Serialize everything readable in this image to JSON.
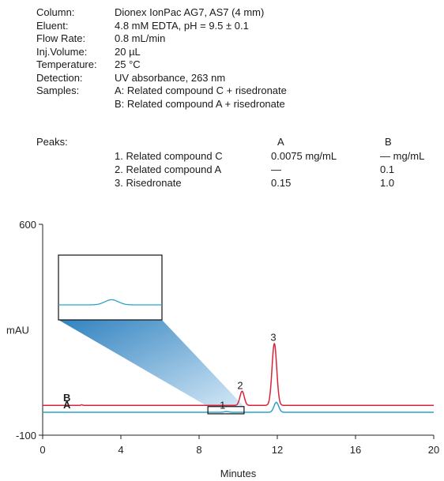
{
  "info": [
    {
      "label": "Column:",
      "value": "Dionex IonPac AG7, AS7 (4 mm)"
    },
    {
      "label": "Eluent:",
      "value": "4.8 mM EDTA, pH = 9.5 ± 0.1"
    },
    {
      "label": "Flow Rate:",
      "value": "0.8 mL/min"
    },
    {
      "label": "Inj.Volume:",
      "value": "20 µL"
    },
    {
      "label": "Temperature:",
      "value": "25 °C"
    },
    {
      "label": "Detection:",
      "value": "UV absorbance, 263 nm"
    },
    {
      "label": "Samples:",
      "value": "A: Related compound C + risedronate"
    },
    {
      "label": "",
      "value": "B: Related compound A + risedronate"
    }
  ],
  "peaks": {
    "label": "Peaks:",
    "col_a": "A",
    "col_b": "B",
    "rows": [
      {
        "name": "1. Related compound C",
        "a": "0.0075  mg/mL",
        "b": "— mg/mL"
      },
      {
        "name": "2. Related compound A",
        "a": "—",
        "b": "0.1"
      },
      {
        "name": "3. Risedronate",
        "a": "0.15",
        "b": "1.0"
      }
    ]
  },
  "chart_data": {
    "type": "line",
    "xlabel": "Minutes",
    "ylabel": "mAU",
    "xlim": [
      0,
      20
    ],
    "ylim": [
      -100,
      600
    ],
    "xticks": [
      "0",
      "4",
      "8",
      "12",
      "16",
      "20"
    ],
    "yticks": [
      "-100",
      "600"
    ],
    "colors": {
      "A": "#2aa3cc",
      "B": "#d8243a"
    },
    "series": [
      {
        "name": "B",
        "baseline": -1,
        "peaks": [
          {
            "x": 2.0,
            "height": 2,
            "width": 0.04
          },
          {
            "x": 10.2,
            "height": 47,
            "width": 0.11
          },
          {
            "x": 11.85,
            "height": 205,
            "width": 0.12
          }
        ]
      },
      {
        "name": "A",
        "baseline": -24,
        "peaks": [
          {
            "x": 9.4,
            "height": 2.5,
            "width": 0.12
          },
          {
            "x": 11.95,
            "height": 33,
            "width": 0.12
          }
        ]
      }
    ],
    "peak_labels": [
      {
        "label": "1",
        "x": 9.2,
        "y": -12
      },
      {
        "label": "2",
        "x": 10.1,
        "y": 54
      },
      {
        "label": "3",
        "x": 11.8,
        "y": 213
      }
    ],
    "inset_region": {
      "x0": 8.45,
      "x1": 10.3,
      "y0": -29,
      "y1": -5
    }
  }
}
